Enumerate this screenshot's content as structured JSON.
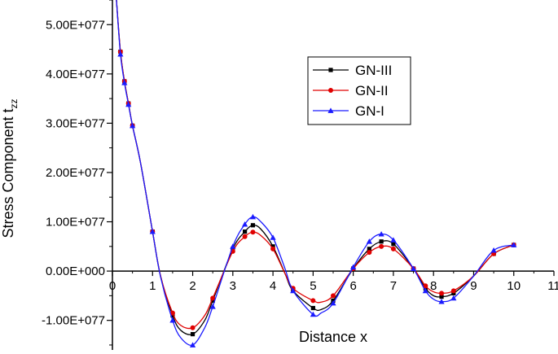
{
  "chart_data": {
    "type": "line",
    "title": "",
    "xlabel": "Distance x",
    "ylabel": "Stress Component t",
    "ylabel_subscript": "zz",
    "xlim": [
      0,
      11
    ],
    "ylim": [
      -1.6e+77,
      5.5e+77
    ],
    "x_ticks": [
      0,
      1,
      2,
      3,
      4,
      5,
      6,
      7,
      8,
      9,
      10,
      11
    ],
    "y_ticks": [
      -1e+77,
      0,
      1e+77,
      2e+77,
      3e+77,
      4e+77,
      5e+77
    ],
    "y_tick_labels": [
      "-1.00E+077",
      "0.00E+000",
      "1.00E+077",
      "2.00E+077",
      "3.00E+077",
      "4.00E+077",
      "5.00E+077"
    ],
    "grid": false,
    "legend_position": "top-right",
    "series": [
      {
        "name": "GN-III",
        "color": "#000000",
        "marker": "square",
        "x": [
          0.1,
          0.2,
          0.3,
          0.4,
          0.5,
          0.7,
          1.0,
          1.2,
          1.5,
          1.7,
          2.0,
          2.3,
          2.5,
          3.0,
          3.3,
          3.5,
          3.7,
          4.0,
          4.3,
          4.5,
          5.0,
          5.2,
          5.5,
          6.0,
          6.4,
          6.7,
          7.0,
          7.5,
          7.8,
          8.0,
          8.2,
          8.5,
          9.0,
          9.5,
          10.0
        ],
        "y": [
          5.5e+77,
          4.45e+77,
          3.85e+77,
          3.4e+77,
          2.95e+77,
          2.2e+77,
          8e+76,
          -1e+76,
          -9e+76,
          -1.2e+77,
          -1.28e+77,
          -1e+77,
          -6e+76,
          4.5e+76,
          8e+76,
          9.3e+76,
          8.5e+76,
          5e+76,
          -5e+75,
          -4e+76,
          -7.5e+76,
          -7.8e+76,
          -6e+76,
          5e+75,
          4.5e+76,
          6e+76,
          5.5e+76,
          5e+75,
          -3.5e+76,
          -5e+76,
          -5.2e+76,
          -4.5e+76,
          -1e+76,
          3.5e+76,
          5.3e+76
        ]
      },
      {
        "name": "GN-II",
        "color": "#e00000",
        "marker": "circle",
        "x": [
          0.1,
          0.2,
          0.3,
          0.4,
          0.5,
          0.7,
          1.0,
          1.2,
          1.5,
          1.7,
          2.0,
          2.3,
          2.5,
          3.0,
          3.3,
          3.5,
          3.7,
          4.0,
          4.3,
          4.5,
          5.0,
          5.2,
          5.5,
          6.0,
          6.4,
          6.7,
          7.0,
          7.5,
          7.8,
          8.0,
          8.2,
          8.5,
          9.0,
          9.5,
          10.0
        ],
        "y": [
          5.5e+77,
          4.45e+77,
          3.85e+77,
          3.4e+77,
          2.95e+77,
          2.2e+77,
          8e+76,
          -1e+76,
          -8.5e+76,
          -1.1e+77,
          -1.15e+77,
          -9e+76,
          -5.5e+76,
          4e+76,
          7e+76,
          7.9e+76,
          7.2e+76,
          4.5e+76,
          -5e+75,
          -3.5e+76,
          -6e+76,
          -6.3e+76,
          -5e+76,
          5e+75,
          3.8e+76,
          5e+76,
          4.5e+76,
          5e+75,
          -3e+76,
          -4.2e+76,
          -4.5e+76,
          -4e+76,
          -1e+76,
          3.5e+76,
          5.3e+76
        ]
      },
      {
        "name": "GN-I",
        "color": "#1a1aff",
        "marker": "triangle",
        "x": [
          0.1,
          0.2,
          0.3,
          0.4,
          0.5,
          0.7,
          1.0,
          1.2,
          1.5,
          1.7,
          2.0,
          2.3,
          2.5,
          3.0,
          3.3,
          3.5,
          3.7,
          4.0,
          4.3,
          4.5,
          5.0,
          5.2,
          5.5,
          6.0,
          6.4,
          6.7,
          7.0,
          7.5,
          7.8,
          8.0,
          8.2,
          8.5,
          9.0,
          9.5,
          10.0
        ],
        "y": [
          5.5e+77,
          4.4e+77,
          3.82e+77,
          3.38e+77,
          2.95e+77,
          2.2e+77,
          8e+76,
          -1.2e+76,
          -1e+77,
          -1.35e+77,
          -1.5e+77,
          -1.15e+77,
          -7.2e+76,
          5e+76,
          9.5e+76,
          1.1e+77,
          1e+77,
          6.8e+76,
          5e+75,
          -4e+76,
          -8.8e+76,
          -8.5e+76,
          -6.5e+76,
          8e+75,
          6e+76,
          7.5e+76,
          6.3e+76,
          5e+75,
          -4e+76,
          -5.7e+76,
          -6.2e+76,
          -5.5e+76,
          -1e+76,
          4.2e+76,
          5.3e+76
        ]
      }
    ]
  }
}
